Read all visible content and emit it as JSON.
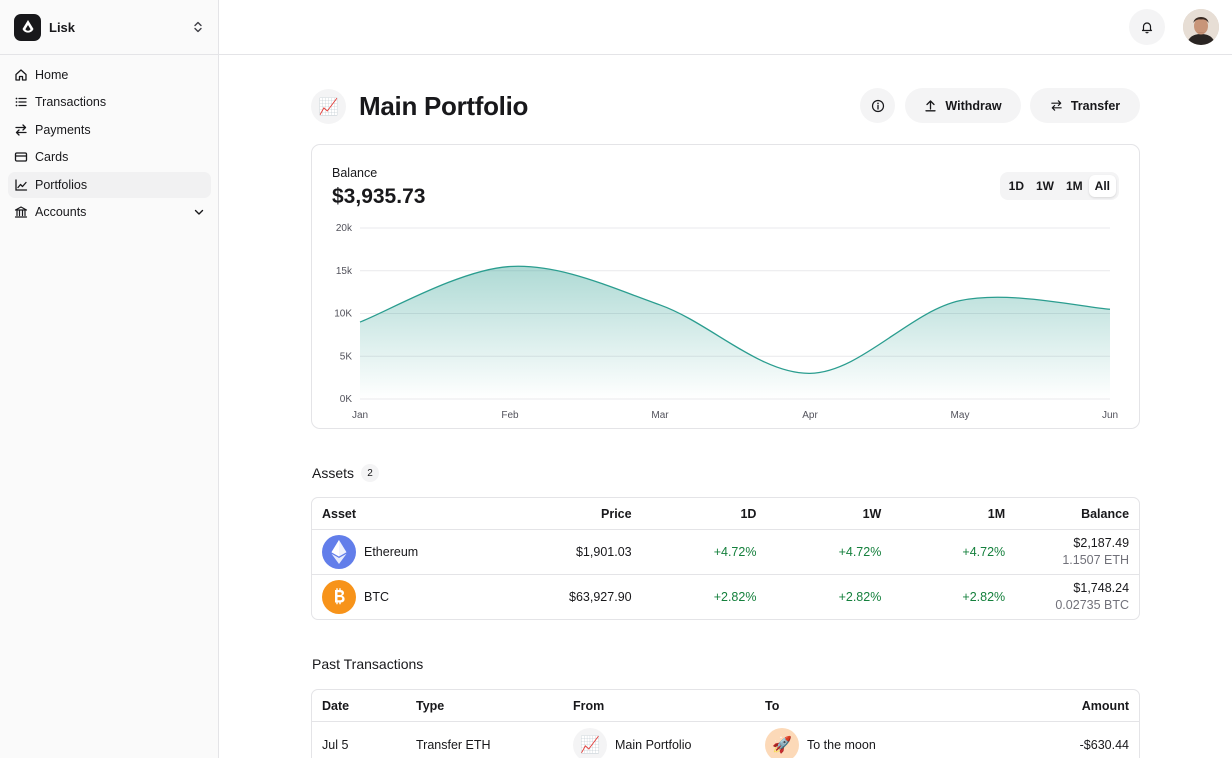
{
  "sidebar": {
    "team_name": "Lisk",
    "items": [
      {
        "label": "Home",
        "icon": "home-icon"
      },
      {
        "label": "Transactions",
        "icon": "list-icon"
      },
      {
        "label": "Payments",
        "icon": "arrows-icon"
      },
      {
        "label": "Cards",
        "icon": "credit-card-icon"
      },
      {
        "label": "Portfolios",
        "icon": "chart-line-icon",
        "active": true
      },
      {
        "label": "Accounts",
        "icon": "bank-icon"
      }
    ]
  },
  "header": {
    "portfolio_emoji": "📈",
    "title": "Main Portfolio",
    "withdraw_label": "Withdraw",
    "transfer_label": "Transfer"
  },
  "balance": {
    "label": "Balance",
    "value": "$3,935.73",
    "ranges": [
      "1D",
      "1W",
      "1M",
      "All"
    ],
    "selected_range": "All"
  },
  "chart_data": {
    "type": "area",
    "x": [
      "Jan",
      "Feb",
      "Mar",
      "Apr",
      "May",
      "Jun"
    ],
    "series": [
      {
        "values": [
          9000,
          15500,
          11000,
          3000,
          11500,
          10500
        ]
      }
    ],
    "y_ticks": [
      "20k",
      "15k",
      "10K",
      "5K",
      "0K"
    ],
    "ylim": [
      0,
      20000
    ],
    "grid": true,
    "color": "#2a9d8f"
  },
  "assets": {
    "title": "Assets",
    "count": "2",
    "columns": [
      "Asset",
      "Price",
      "1D",
      "1W",
      "1M",
      "Balance"
    ],
    "rows": [
      {
        "name": "Ethereum",
        "price": "$1,901.03",
        "d1": "+4.72%",
        "w1": "+4.72%",
        "m1": "+4.72%",
        "balance_usd": "$2,187.49",
        "balance_coin": "1.1507 ETH",
        "icon": "ethereum-icon",
        "color": "#627eea"
      },
      {
        "name": "BTC",
        "price": "$63,927.90",
        "d1": "+2.82%",
        "w1": "+2.82%",
        "m1": "+2.82%",
        "balance_usd": "$1,748.24",
        "balance_coin": "0.02735 BTC",
        "icon": "bitcoin-icon",
        "color": "#f7931a"
      }
    ]
  },
  "transactions": {
    "title": "Past Transactions",
    "columns": [
      "Date",
      "Type",
      "From",
      "To",
      "Amount"
    ],
    "rows": [
      {
        "date": "Jul 5",
        "type": "Transfer ETH",
        "from_emoji": "📈",
        "from": "Main Portfolio",
        "to_emoji": "🚀",
        "to": "To the moon",
        "amount": "-$630.44"
      }
    ]
  }
}
